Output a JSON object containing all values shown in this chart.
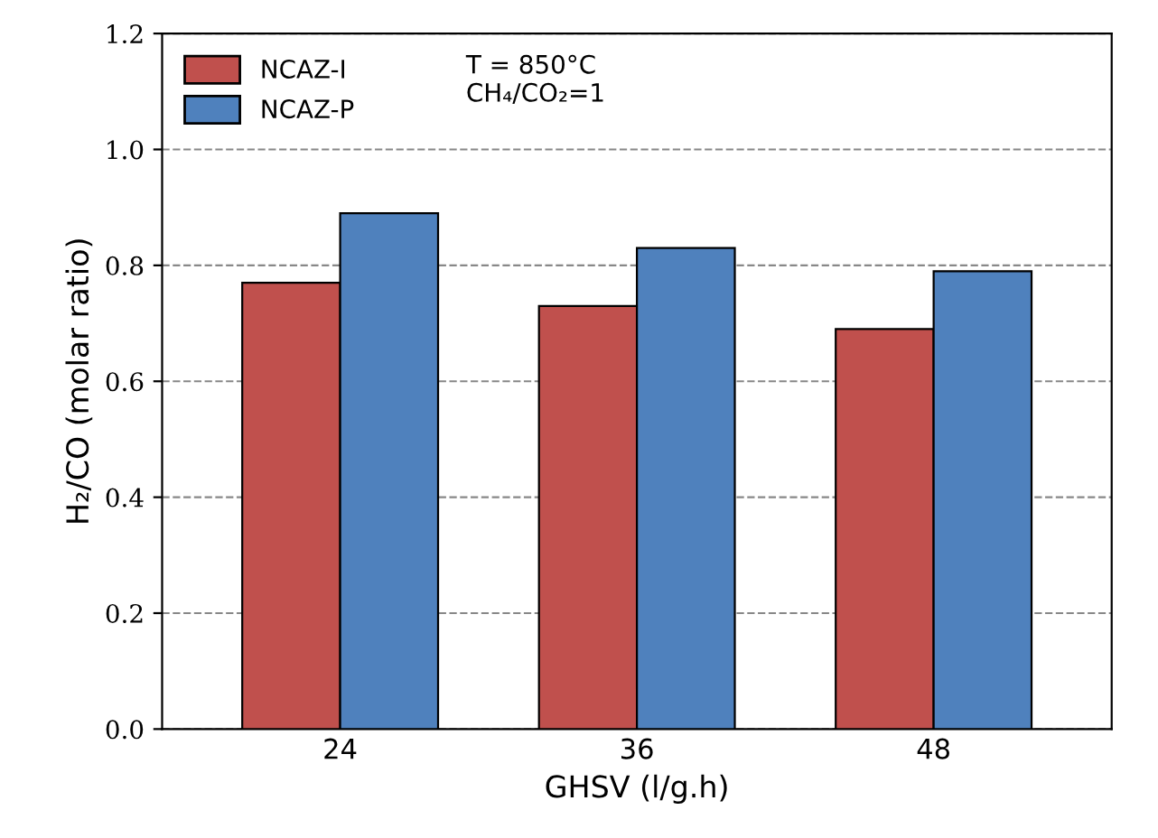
{
  "chart_data": {
    "type": "bar",
    "xlabel": "GHSV (l/g.h)",
    "ylabel": "H₂/CO (molar ratio)",
    "categories": [
      "24",
      "36",
      "48"
    ],
    "series": [
      {
        "name": "NCAZ-I",
        "color": "#c0504d",
        "values": [
          0.77,
          0.73,
          0.69
        ]
      },
      {
        "name": "NCAZ-P",
        "color": "#4f81bd",
        "values": [
          0.89,
          0.83,
          0.79
        ]
      }
    ],
    "ylim": [
      0,
      1.2
    ],
    "yticks": [
      {
        "value": 0,
        "label": "0.0"
      },
      0.2,
      0.4,
      0.6,
      0.8,
      {
        "value": 1,
        "label": "1.0"
      },
      1.2
    ],
    "grid": "y",
    "legend": "top left",
    "annotations": [
      "T = 850°C",
      "CH₄/CO₂=1"
    ]
  }
}
